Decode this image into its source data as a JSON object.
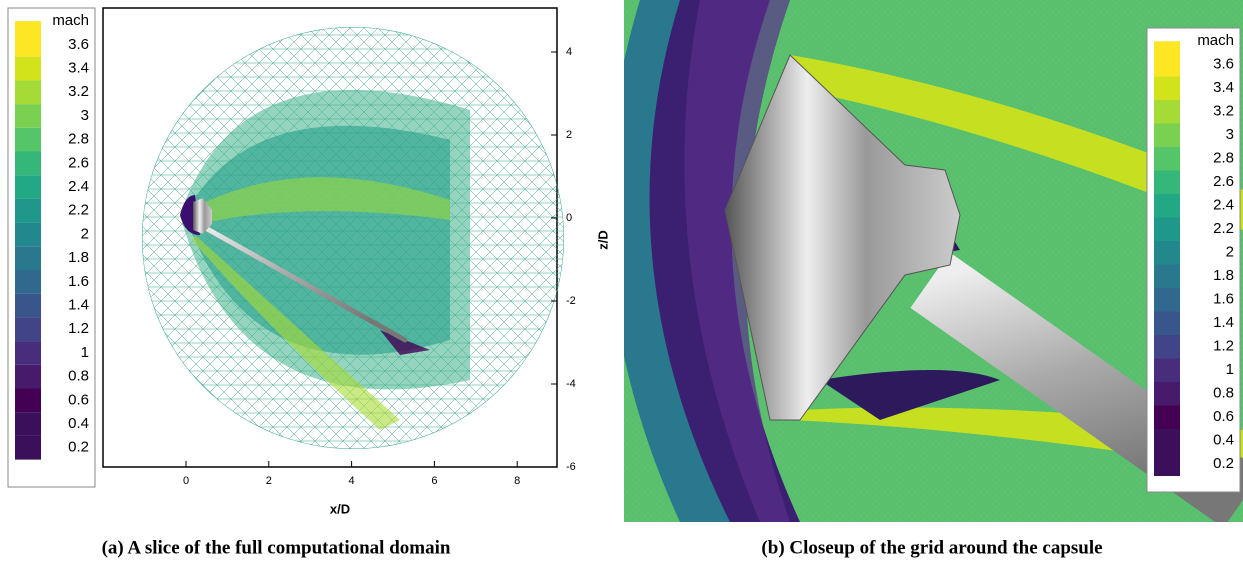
{
  "panels": [
    {
      "caption": "(a) A slice of the full computational domain",
      "colorbar": {
        "title": "mach",
        "ticks": [
          "3.6",
          "3.4",
          "3.2",
          "3",
          "2.8",
          "2.6",
          "2.4",
          "2.2",
          "2",
          "1.8",
          "1.6",
          "1.4",
          "1.2",
          "1",
          "0.8",
          "0.6",
          "0.4",
          "0.2"
        ]
      },
      "x_axis": {
        "label": "x/D",
        "ticks": [
          "0",
          "2",
          "4",
          "6",
          "8"
        ]
      },
      "y_axis": {
        "label": "z/D",
        "ticks": [
          "4",
          "2",
          "0",
          "-2",
          "-4",
          "-6"
        ]
      }
    },
    {
      "caption": "(b) Closeup of the grid around the capsule",
      "colorbar": {
        "title": "mach",
        "ticks": [
          "3.6",
          "3.4",
          "3.2",
          "3",
          "2.8",
          "2.6",
          "2.4",
          "2.2",
          "2",
          "1.8",
          "1.6",
          "1.4",
          "1.2",
          "1",
          "0.8",
          "0.6",
          "0.4",
          "0.2"
        ]
      }
    }
  ]
}
